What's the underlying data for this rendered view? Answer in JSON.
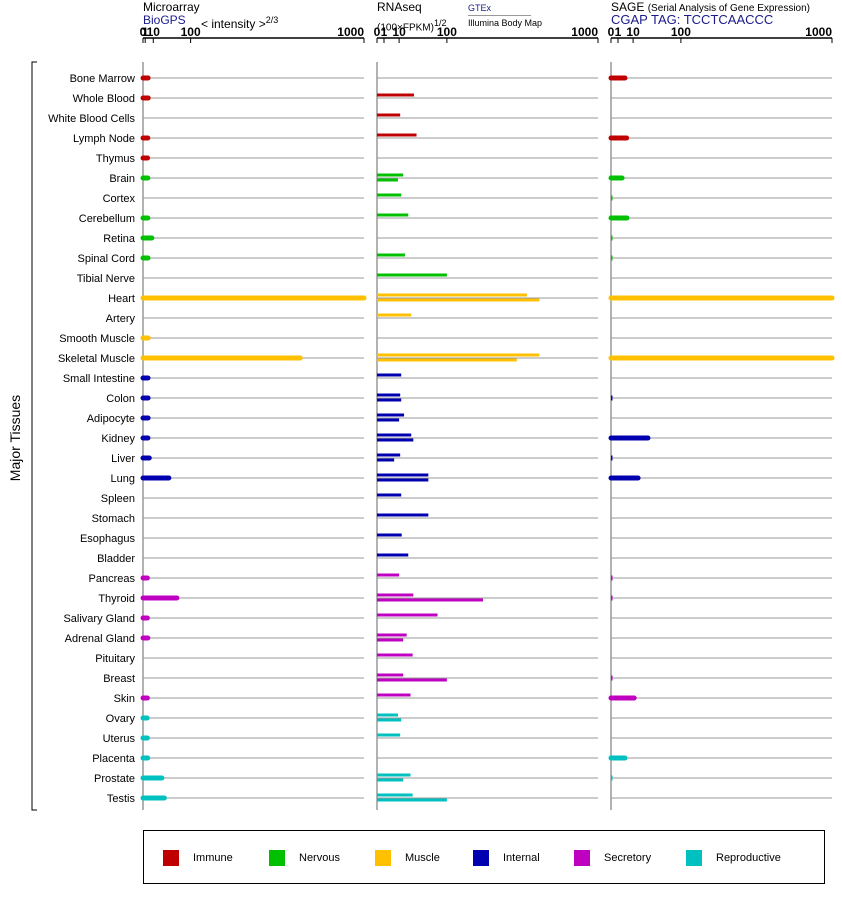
{
  "panels": [
    {
      "title": "Microarray",
      "subtitle": "BioGPS",
      "note": "< intensity >",
      "exponent": "2/3"
    },
    {
      "title": "RNAseq",
      "note": "(100×FPKM)",
      "exponent": "1/2",
      "source_1": "GTEx",
      "source_2": "Illumina Body Map"
    },
    {
      "title": "SAGE",
      "note": "(Serial Analysis of Gene Expression)",
      "subtitle": "CGAP TAG: TCCTCAACCC"
    }
  ],
  "y_axis_label": "Major Tissues",
  "legend": [
    {
      "label": "Immune",
      "color": "#c00000"
    },
    {
      "label": "Nervous",
      "color": "#00c000"
    },
    {
      "label": "Muscle",
      "color": "#ffc000"
    },
    {
      "label": "Internal",
      "color": "#0000b0"
    },
    {
      "label": "Secretory",
      "color": "#c000c0"
    },
    {
      "label": "Reproductive",
      "color": "#00c0c0"
    }
  ],
  "chart_data": {
    "type": "bar",
    "orientation": "horizontal",
    "x_scale": "power (x^2/3 microarray, x^1/2 RNAseq & SAGE)",
    "xlim": [
      0,
      1000
    ],
    "x_ticks": [
      "0",
      "1",
      "10",
      "100",
      "1000"
    ],
    "categories": [
      "Bone Marrow",
      "Whole Blood",
      "White Blood Cells",
      "Lymph Node",
      "Thymus",
      "Brain",
      "Cortex",
      "Cerebellum",
      "Retina",
      "Spinal Cord",
      "Tibial Nerve",
      "Heart",
      "Artery",
      "Smooth Muscle",
      "Skeletal Muscle",
      "Small Intestine",
      "Colon",
      "Adipocyte",
      "Kidney",
      "Liver",
      "Lung",
      "Spleen",
      "Stomach",
      "Esophagus",
      "Bladder",
      "Pancreas",
      "Thyroid",
      "Salivary Gland",
      "Adrenal Gland",
      "Pituitary",
      "Breast",
      "Skin",
      "Ovary",
      "Uterus",
      "Placenta",
      "Prostate",
      "Testis"
    ],
    "category_groups": [
      "Immune",
      "Immune",
      "Immune",
      "Immune",
      "Immune",
      "Nervous",
      "Nervous",
      "Nervous",
      "Nervous",
      "Nervous",
      "Nervous",
      "Muscle",
      "Muscle",
      "Muscle",
      "Muscle",
      "Internal",
      "Internal",
      "Internal",
      "Internal",
      "Internal",
      "Internal",
      "Internal",
      "Internal",
      "Internal",
      "Internal",
      "Secretory",
      "Secretory",
      "Secretory",
      "Secretory",
      "Secretory",
      "Secretory",
      "Secretory",
      "Reproductive",
      "Reproductive",
      "Reproductive",
      "Reproductive",
      "Reproductive"
    ],
    "microarray": [
      3.5,
      3.6,
      null,
      3.2,
      3.0,
      3.2,
      null,
      3.2,
      8,
      3.4,
      null,
      1000,
      null,
      3.6,
      600,
      3.4,
      3.5,
      3.5,
      3.3,
      4.8,
      40,
      null,
      null,
      null,
      null,
      2.8,
      60,
      2.8,
      3.2,
      null,
      null,
      2.8,
      2.5,
      2.8,
      3.1,
      25,
      30
    ],
    "rnaseq_gtex": [
      null,
      28,
      null,
      35,
      null,
      13,
      null,
      22,
      null,
      15,
      null,
      520,
      null,
      null,
      530,
      null,
      11,
      15,
      27,
      11,
      54,
      null,
      null,
      null,
      null,
      null,
      27,
      null,
      18,
      null,
      null,
      null,
      null,
      null,
      null,
      null,
      null
    ],
    "rnaseq_gtex_pairs": {
      "Brain": [
        14,
        9
      ],
      "Cortex": [
        12
      ],
      "Heart": [
        460,
        540
      ],
      "Artery": [
        24
      ],
      "Skeletal Muscle": [
        540,
        400
      ],
      "Small Intestine": [
        12
      ],
      "Colon": [
        11,
        12
      ],
      "Adipocyte": [
        15,
        10
      ],
      "Kidney": [
        24,
        27
      ],
      "Liver": [
        11,
        6
      ],
      "Lung": [
        54,
        54
      ],
      "Spleen": [
        12
      ],
      "Stomach": [
        54
      ],
      "Esophagus": [
        12.5
      ],
      "Bladder": [
        20
      ],
      "Pancreas": [
        10
      ],
      "Thyroid": [
        27,
        230
      ],
      "Salivary Gland": [
        75
      ],
      "Adrenal Gland": [
        18,
        14
      ],
      "Pituitary": [
        26
      ],
      "Breast": [
        14,
        100
      ],
      "Skin": [
        23
      ],
      "Ovary": [
        9,
        12
      ],
      "Uterus": [
        11
      ],
      "Prostate": [
        23,
        14
      ],
      "Testis": [
        26,
        100
      ],
      "Whole Blood": [
        28
      ],
      "White Blood Cells": [
        11
      ],
      "Lymph Node": [
        32
      ],
      "Cerebellum": [
        20
      ],
      "Spinal Cord": [
        16
      ],
      "Tibial Nerve": [
        100
      ]
    },
    "sage": [
      4,
      null,
      null,
      5,
      null,
      2.5,
      0,
      5.2,
      0,
      0,
      null,
      1000,
      null,
      null,
      1000,
      null,
      0,
      null,
      28,
      0,
      15,
      null,
      null,
      null,
      null,
      0,
      0,
      null,
      null,
      null,
      0,
      11,
      null,
      null,
      4,
      0,
      null
    ]
  }
}
